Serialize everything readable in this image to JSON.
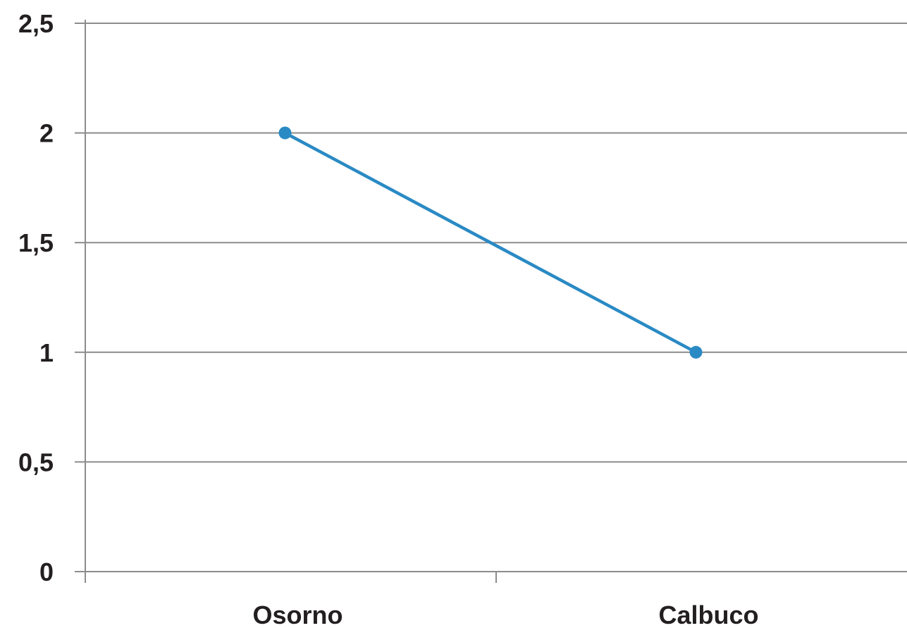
{
  "chart_data": {
    "type": "line",
    "title": "",
    "xlabel": "",
    "ylabel": "",
    "categories": [
      "Osorno",
      "Calbuco"
    ],
    "series": [
      {
        "values": [
          2,
          1
        ],
        "color": "#2a8ac4"
      }
    ],
    "ylim": [
      0,
      2.5
    ],
    "y_ticks": [
      {
        "value": 0,
        "label": "0"
      },
      {
        "value": 0.5,
        "label": "0,5"
      },
      {
        "value": 1,
        "label": "1"
      },
      {
        "value": 1.5,
        "label": "1,5"
      },
      {
        "value": 2,
        "label": "2"
      },
      {
        "value": 2.5,
        "label": "2,5"
      }
    ],
    "grid": true,
    "legend": "none"
  }
}
